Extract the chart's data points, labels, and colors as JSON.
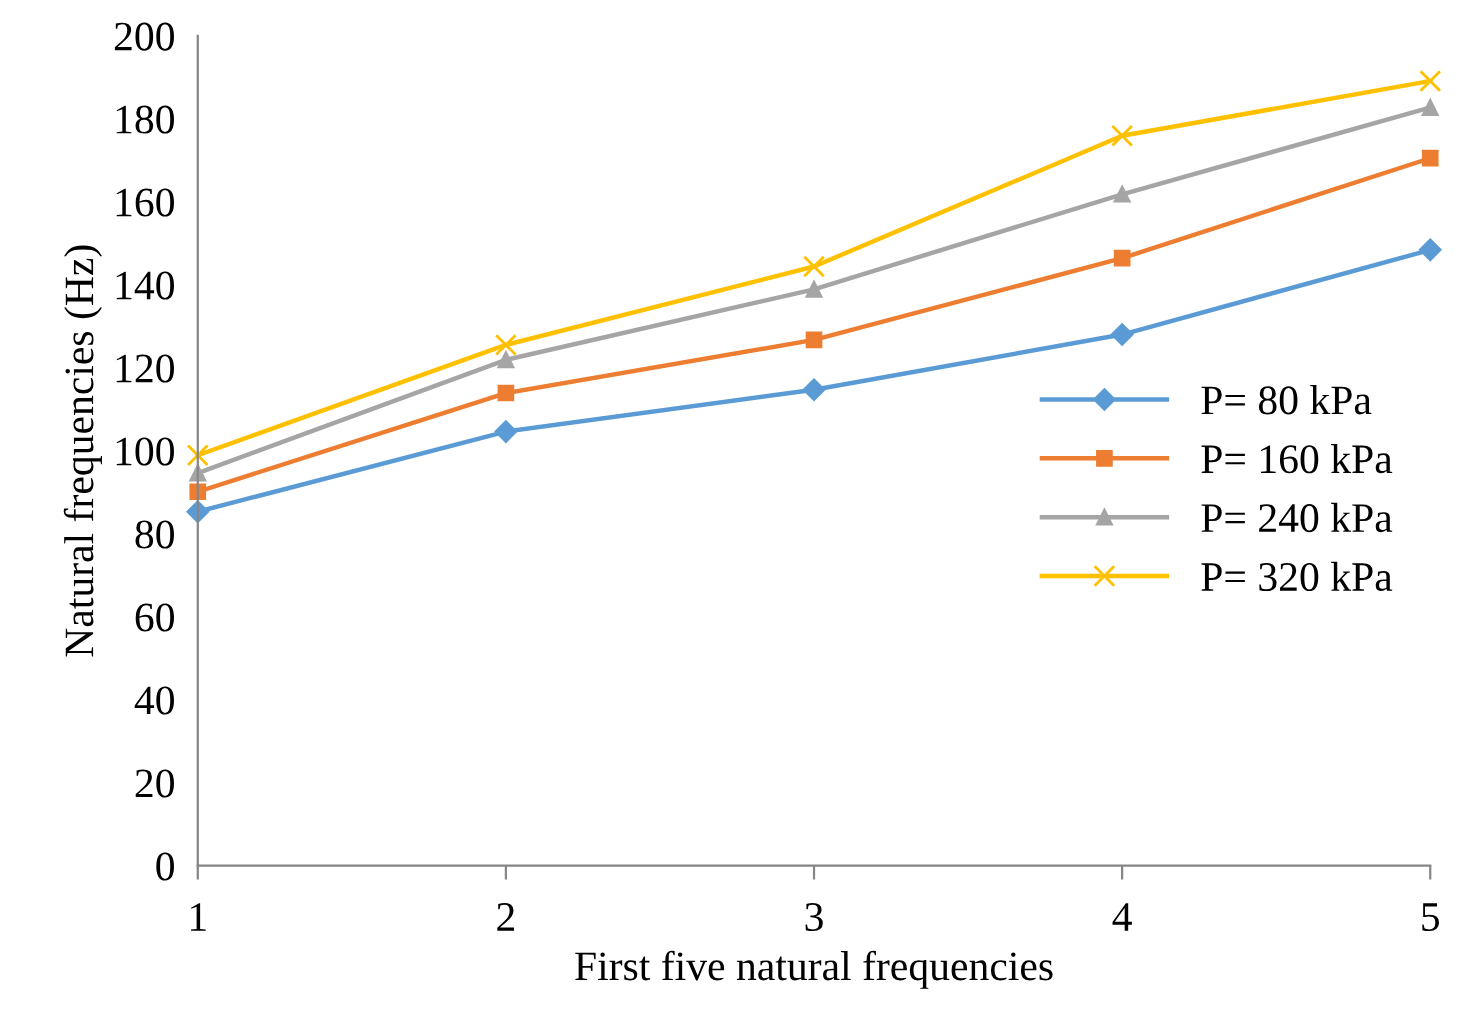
{
  "chart_data": {
    "type": "line",
    "xlabel": "First five natural frequencies",
    "ylabel": "Natural frequencies (Hz)",
    "categories": [
      "1",
      "2",
      "3",
      "4",
      "5"
    ],
    "ylim": [
      0,
      200
    ],
    "yticks": [
      0,
      20,
      40,
      60,
      80,
      100,
      120,
      140,
      160,
      180,
      200
    ],
    "grid": false,
    "legend": "right",
    "line_style": "solid",
    "series": [
      {
        "name": "P= 80 kPa",
        "color": "#5b9bd5",
        "marker": "diamond",
        "values": [
          85.3,
          104.6,
          114.7,
          128.0,
          148.4
        ]
      },
      {
        "name": "P= 160 kPa",
        "color": "#ed7d31",
        "marker": "square",
        "values": [
          90.1,
          113.9,
          126.7,
          146.4,
          170.5
        ]
      },
      {
        "name": "P= 240 kPa",
        "color": "#a5a5a5",
        "marker": "triangle",
        "values": [
          94.6,
          121.9,
          138.9,
          161.8,
          182.7
        ]
      },
      {
        "name": "P= 320 kPa",
        "color": "#ffc000",
        "marker": "cross",
        "values": [
          98.9,
          125.5,
          144.4,
          175.9,
          189.1
        ]
      }
    ]
  }
}
